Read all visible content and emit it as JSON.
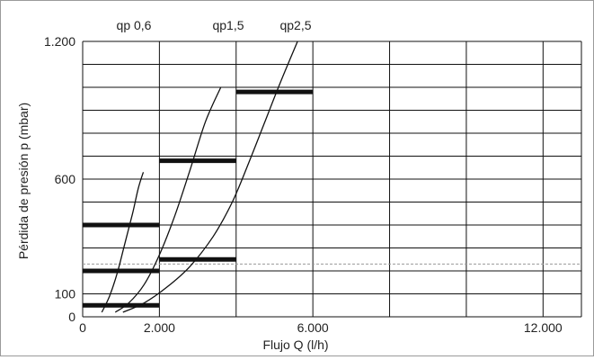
{
  "chart_data": {
    "type": "line",
    "title": "",
    "xlabel": "Flujo Q (l/h)",
    "ylabel": "Pérdida de presión p (mbar)",
    "xlim": [
      0,
      13000
    ],
    "ylim": [
      0,
      1200
    ],
    "x_ticks": [
      {
        "value": 0,
        "label": "0"
      },
      {
        "value": 2000,
        "label": "2.000"
      },
      {
        "value": 6000,
        "label": "6.000"
      },
      {
        "value": 12000,
        "label": "12.000"
      }
    ],
    "y_ticks": [
      {
        "value": 0,
        "label": "0"
      },
      {
        "value": 100,
        "label": "100"
      },
      {
        "value": 600,
        "label": "600"
      },
      {
        "value": 1200,
        "label": "1.200"
      }
    ],
    "grid": true,
    "dashed_reference": {
      "y": 230,
      "color": "#999999"
    },
    "series": [
      {
        "name": "qp 0,6",
        "x": [
          500,
          700,
          900,
          1100,
          1300,
          1450,
          1580
        ],
        "y": [
          20,
          90,
          190,
          320,
          450,
          560,
          630
        ]
      },
      {
        "name": "qp1,5",
        "x": [
          850,
          1200,
          1600,
          2000,
          2400,
          2800,
          3200,
          3600
        ],
        "y": [
          20,
          60,
          140,
          270,
          440,
          640,
          850,
          1000
        ]
      },
      {
        "name": "qp2,5",
        "x": [
          1050,
          1600,
          2200,
          2800,
          3400,
          3900,
          4350,
          4750,
          5150,
          5600
        ],
        "y": [
          20,
          60,
          130,
          220,
          350,
          500,
          680,
          850,
          1020,
          1200
        ]
      }
    ],
    "bands": [
      {
        "x_start": 0,
        "x_end": 2000,
        "y": 400
      },
      {
        "x_start": 0,
        "x_end": 2000,
        "y": 200
      },
      {
        "x_start": 0,
        "x_end": 2000,
        "y": 50
      },
      {
        "x_start": 2000,
        "x_end": 4000,
        "y": 680
      },
      {
        "x_start": 2000,
        "x_end": 4000,
        "y": 250
      },
      {
        "x_start": 4000,
        "x_end": 6000,
        "y": 980
      }
    ]
  }
}
